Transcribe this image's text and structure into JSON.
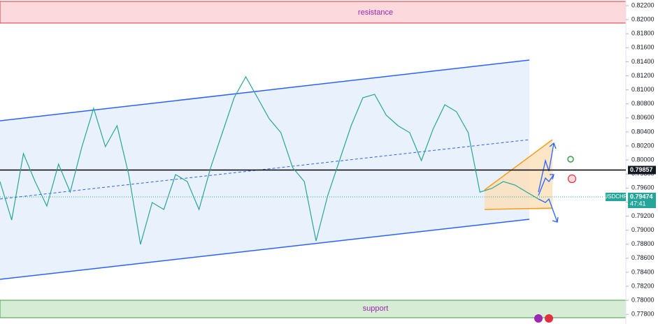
{
  "chart_data": {
    "type": "line",
    "color": "#26a69a",
    "values": [
      0.79693,
      0.79145,
      0.80091,
      0.79693,
      0.79344,
      0.79941,
      0.79543,
      0.8019,
      0.80737,
      0.8019,
      0.80489,
      0.79792,
      0.78797,
      0.79394,
      0.79295,
      0.79792,
      0.79693,
      0.79295,
      0.79892,
      0.80389,
      0.80887,
      0.81185,
      0.80887,
      0.80588,
      0.80389,
      0.79892,
      0.79693,
      0.78847,
      0.79494,
      0.79991,
      0.80489,
      0.80887,
      0.80936,
      0.80638,
      0.80489,
      0.80389,
      0.79991,
      0.80439,
      0.80787,
      0.80688,
      0.80389,
      0.79543,
      0.79593,
      0.79693,
      0.79643,
      0.79543,
      0.79444
    ],
    "ylim": [
      0.77663,
      0.8228
    ],
    "yticks": [
      {
        "value": 0.822,
        "label": "0.82200"
      },
      {
        "value": 0.82,
        "label": "0.82000"
      },
      {
        "value": 0.818,
        "label": "0.81800"
      },
      {
        "value": 0.816,
        "label": "0.81600"
      },
      {
        "value": 0.814,
        "label": "0.81400"
      },
      {
        "value": 0.812,
        "label": "0.81200"
      },
      {
        "value": 0.81,
        "label": "0.81000"
      },
      {
        "value": 0.808,
        "label": "0.80800"
      },
      {
        "value": 0.806,
        "label": "0.80600"
      },
      {
        "value": 0.804,
        "label": "0.80400"
      },
      {
        "value": 0.802,
        "label": "0.80200"
      },
      {
        "value": 0.8,
        "label": "0.80000"
      },
      {
        "value": 0.798,
        "label": "0.79800"
      },
      {
        "value": 0.796,
        "label": "0.79600"
      },
      {
        "value": 0.794,
        "label": "0.79400"
      },
      {
        "value": 0.792,
        "label": "0.79200"
      },
      {
        "value": 0.79,
        "label": "0.79000"
      },
      {
        "value": 0.788,
        "label": "0.78800"
      },
      {
        "value": 0.786,
        "label": "0.78600"
      },
      {
        "value": 0.784,
        "label": "0.78400"
      },
      {
        "value": 0.782,
        "label": "0.78200"
      },
      {
        "value": 0.78,
        "label": "0.78000"
      },
      {
        "value": 0.778,
        "label": "0.77800"
      }
    ],
    "resistance_label": "resistance",
    "support_label": "support",
    "level": {
      "value": 0.79857,
      "label": "0.79857"
    },
    "current": {
      "symbol": "USDCHF",
      "value": 0.79474,
      "label": "0.79474",
      "countdown": "47:41"
    }
  }
}
